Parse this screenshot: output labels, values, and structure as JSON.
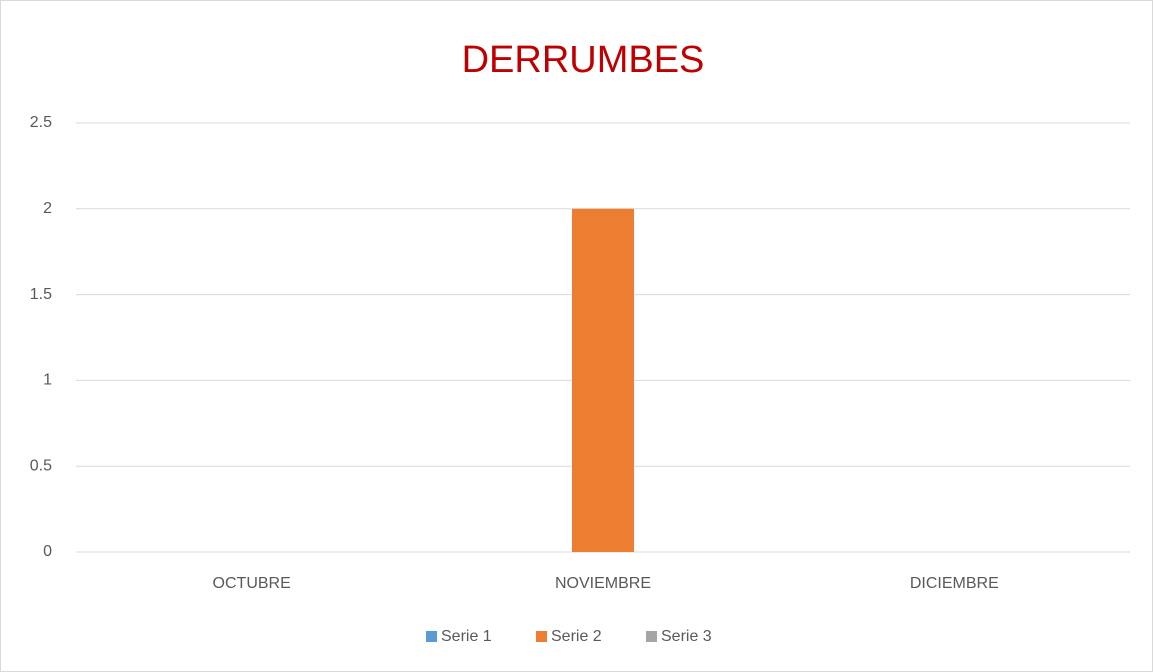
{
  "chart_data": {
    "type": "bar",
    "title": "DERRUMBES",
    "categories": [
      "OCTUBRE",
      "NOVIEMBRE",
      "DICIEMBRE"
    ],
    "series": [
      {
        "name": "Serie 1",
        "color": "#5b9bd5",
        "values": [
          0,
          0,
          0
        ]
      },
      {
        "name": "Serie 2",
        "color": "#ed7d31",
        "values": [
          0,
          2,
          0
        ]
      },
      {
        "name": "Serie 3",
        "color": "#a5a5a5",
        "values": [
          0,
          0,
          0
        ]
      }
    ],
    "ylim": [
      0,
      2.5
    ],
    "yticks": [
      0,
      0.5,
      1,
      1.5,
      2,
      2.5
    ],
    "grid": true,
    "legend": "bottom",
    "title_color": "#c00000"
  }
}
